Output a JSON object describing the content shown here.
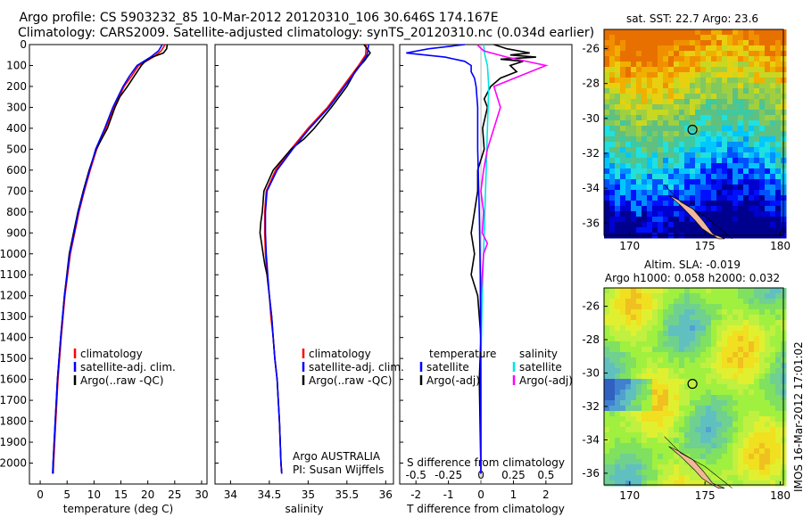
{
  "header": {
    "line1": "Argo profile: CS 5903232_85 10-Mar-2012 20120310_106 30.646S 174.167E",
    "line2": "Climatology: CARS2009. Satellite-adjusted climatology: synTS_20120310.nc (0.034d earlier)"
  },
  "colors": {
    "climatology": "#ff0000",
    "satellite": "#0000ff",
    "argo": "#000000",
    "satellite_s": "#00e5e5",
    "argo_s": "#ff00ff"
  },
  "chart_data": [
    {
      "type": "line",
      "xlabel": "temperature (deg C)",
      "ylim": [
        2100,
        0
      ],
      "xlim": [
        -2,
        31
      ],
      "xticks": [
        0,
        5,
        10,
        15,
        20,
        25,
        30
      ],
      "yticks": [
        0,
        100,
        200,
        300,
        400,
        500,
        600,
        700,
        800,
        900,
        1000,
        1100,
        1200,
        1300,
        1400,
        1500,
        1600,
        1700,
        1800,
        1900,
        2000
      ],
      "legend": [
        "climatology",
        "satellite-adj. clim.",
        "Argo(..raw -QC)"
      ],
      "series": [
        {
          "name": "climatology",
          "depth": [
            0,
            30,
            60,
            100,
            150,
            200,
            300,
            400,
            500,
            600,
            700,
            800,
            900,
            1000,
            1200,
            1400,
            1600,
            1800,
            2000,
            2050
          ],
          "values": [
            23.2,
            22.5,
            21.0,
            18.3,
            17.0,
            15.6,
            13.7,
            12.2,
            10.5,
            9.3,
            8.2,
            7.2,
            6.4,
            5.6,
            4.6,
            3.9,
            3.3,
            2.9,
            2.5,
            2.4
          ]
        },
        {
          "name": "satellite-adj. clim.",
          "depth": [
            0,
            30,
            60,
            100,
            150,
            200,
            300,
            400,
            500,
            600,
            700,
            800,
            900,
            1000,
            1200,
            1400,
            1600,
            1800,
            2000,
            2050
          ],
          "values": [
            22.7,
            22.0,
            20.5,
            18.0,
            16.6,
            15.4,
            13.5,
            12.0,
            10.3,
            9.2,
            8.1,
            7.1,
            6.3,
            5.5,
            4.5,
            3.8,
            3.2,
            2.8,
            2.4,
            2.3
          ]
        },
        {
          "name": "Argo(..raw -QC)",
          "depth": [
            0,
            20,
            40,
            60,
            80,
            100,
            150,
            200,
            250,
            300,
            400,
            500,
            600,
            700,
            800,
            900,
            1000,
            1200,
            1400,
            1600,
            1800,
            2000,
            2050
          ],
          "values": [
            23.6,
            23.5,
            22.9,
            20.8,
            19.5,
            18.8,
            17.5,
            16.2,
            14.8,
            13.9,
            12.5,
            10.4,
            9.1,
            8.0,
            7.0,
            6.2,
            5.4,
            4.5,
            3.8,
            3.2,
            2.8,
            2.4,
            2.4
          ]
        }
      ]
    },
    {
      "type": "line",
      "xlabel": "salinity",
      "ylim": [
        2100,
        0
      ],
      "xlim": [
        33.8,
        36.1
      ],
      "xticks": [
        34,
        34.5,
        35,
        35.5,
        36
      ],
      "legend": [
        "climatology",
        "satellite-adj. clim.",
        "Argo(..raw -QC)"
      ],
      "annotation": [
        "Argo AUSTRALIA",
        "PI: Susan Wijffels"
      ],
      "series": [
        {
          "name": "climatology",
          "depth": [
            0,
            50,
            100,
            200,
            300,
            400,
            500,
            600,
            700,
            800,
            900,
            1000,
            1100,
            1200,
            1300,
            1400,
            1500,
            1600,
            1800,
            2000,
            2050
          ],
          "values": [
            35.75,
            35.74,
            35.65,
            35.45,
            35.25,
            35.0,
            34.78,
            34.58,
            34.46,
            34.44,
            34.44,
            34.45,
            34.47,
            34.5,
            34.52,
            34.55,
            34.57,
            34.6,
            34.63,
            34.65,
            34.66
          ]
        },
        {
          "name": "satellite-adj. clim.",
          "depth": [
            0,
            50,
            100,
            200,
            300,
            400,
            500,
            600,
            700,
            800,
            900,
            1000,
            1100,
            1200,
            1300,
            1400,
            1500,
            1600,
            1800,
            2000,
            2050
          ],
          "values": [
            35.78,
            35.76,
            35.67,
            35.47,
            35.27,
            35.02,
            34.8,
            34.6,
            34.47,
            34.45,
            34.45,
            34.46,
            34.48,
            34.5,
            34.53,
            34.55,
            34.57,
            34.6,
            34.63,
            34.65,
            34.66
          ]
        },
        {
          "name": "Argo(..raw -QC)",
          "depth": [
            0,
            40,
            80,
            120,
            200,
            300,
            400,
            450,
            500,
            600,
            700,
            750,
            800,
            850,
            900,
            950,
            1000,
            1050,
            1100,
            1200,
            1300,
            1400,
            1500,
            1600,
            1800,
            2000,
            2050
          ],
          "values": [
            35.72,
            35.8,
            35.72,
            35.62,
            35.5,
            35.3,
            35.08,
            34.95,
            34.78,
            34.55,
            34.43,
            34.42,
            34.41,
            34.39,
            34.38,
            34.4,
            34.42,
            34.44,
            34.47,
            34.5,
            34.53,
            34.55,
            34.57,
            34.6,
            34.63,
            34.65,
            34.66
          ]
        }
      ]
    },
    {
      "type": "line",
      "xlabel": "T difference from climatology",
      "xlabel_top": "S difference from climatology",
      "ylim": [
        2100,
        0
      ],
      "xlim": [
        -2.5,
        2.8
      ],
      "xticks": [
        -2,
        -1,
        0,
        1,
        2
      ],
      "xticks_top": [
        -0.5,
        -0.25,
        0,
        0.25,
        0.5
      ],
      "legend_groups": [
        {
          "title": "temperature",
          "items": [
            "satellite",
            "Argo(-adj)"
          ]
        },
        {
          "title": "salinity",
          "items": [
            "satellite",
            "Argo(-adj)"
          ]
        }
      ],
      "series": [
        {
          "name": "temperature satellite",
          "depth": [
            0,
            20,
            40,
            60,
            80,
            100,
            130,
            160,
            200,
            300,
            500,
            800,
            1100,
            1500,
            2050
          ],
          "values": [
            -0.5,
            -1.6,
            -2.3,
            -1.1,
            -0.5,
            -0.3,
            -0.3,
            -0.2,
            -0.15,
            -0.1,
            -0.1,
            -0.05,
            -0.02,
            -0.01,
            0
          ]
        },
        {
          "name": "temperature Argo(-adj)",
          "depth": [
            0,
            20,
            40,
            50,
            60,
            70,
            80,
            100,
            130,
            160,
            200,
            260,
            300,
            400,
            500,
            600,
            700,
            800,
            900,
            1000,
            1100,
            1200,
            1400,
            1600,
            2050
          ],
          "values": [
            0.4,
            0.8,
            1.5,
            0.9,
            1.7,
            0.6,
            1.3,
            0.9,
            1.1,
            0.6,
            0.3,
            0.1,
            0.2,
            0.05,
            0.1,
            -0.1,
            -0.1,
            -0.2,
            -0.3,
            -0.2,
            -0.3,
            -0.1,
            0,
            -0.05,
            0
          ]
        },
        {
          "name": "salinity satellite",
          "depth": [
            0,
            50,
            100,
            200,
            400,
            600,
            800,
            1000,
            1200,
            1500,
            2050
          ],
          "values": [
            0.02,
            0.03,
            0.05,
            0.06,
            0.05,
            0.04,
            0.03,
            0.02,
            0.01,
            0,
            0
          ]
        },
        {
          "name": "salinity Argo(-adj)",
          "depth": [
            0,
            30,
            60,
            100,
            150,
            200,
            300,
            400,
            500,
            600,
            700,
            800,
            900,
            950,
            1000,
            1100,
            1200,
            1400,
            2050
          ],
          "values": [
            -0.03,
            0.02,
            0.2,
            0.5,
            0.3,
            0.1,
            0.15,
            0.1,
            0.05,
            0.02,
            0,
            0.02,
            0.01,
            0.05,
            0.02,
            0.01,
            0,
            0,
            0
          ]
        }
      ]
    }
  ],
  "maps": {
    "sst": {
      "title": "sat. SST: 22.7 Argo: 23.6",
      "yticks": [
        "-26",
        "-28",
        "-30",
        "-32",
        "-34",
        "-36"
      ],
      "xticks": [
        "170",
        "175",
        "180"
      ]
    },
    "sla": {
      "title_line1": "Altim. SLA: -0.019",
      "title_line2": "Argo h1000: 0.058 h2000: 0.032",
      "yticks": [
        "-26",
        "-28",
        "-30",
        "-32",
        "-34",
        "-36"
      ],
      "xticks": [
        "170",
        "175",
        "180"
      ]
    }
  },
  "stamp": "IMOS 16-Mar-2012 17:01:02"
}
